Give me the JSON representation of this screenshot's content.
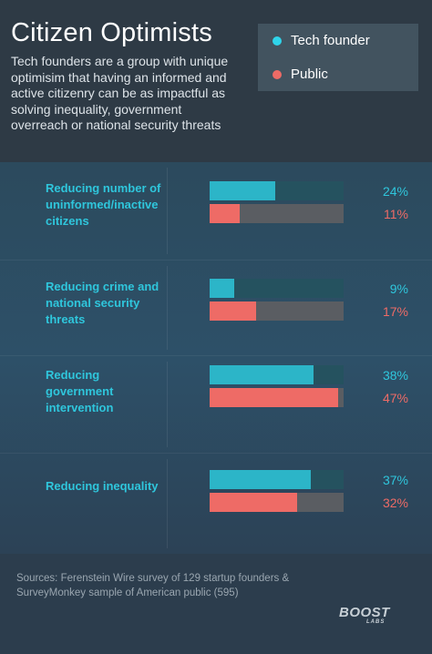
{
  "header": {
    "title": "Citizen Optimists",
    "subtitle": "Tech founders are a group with unique optimisim that having an informed and active citizenry can be as impactful as solving inequality, government overreach or national security threats"
  },
  "legend": {
    "items": [
      {
        "label": "Tech founder",
        "color": "#2fd4ea"
      },
      {
        "label": "Public",
        "color": "#ee6b66"
      }
    ]
  },
  "chart_data": {
    "type": "bar",
    "orientation": "horizontal",
    "categories": [
      "Reducing number of uninformed/inactive citizens",
      "Reducing crime and national security threats",
      "Reducing government intervention",
      "Reducing inequality"
    ],
    "series": [
      {
        "name": "Tech founder",
        "values": [
          24,
          9,
          38,
          37
        ],
        "labels": [
          "24%",
          "9%",
          "38%",
          "37%"
        ],
        "color": "#2cb5c8"
      },
      {
        "name": "Public",
        "values": [
          11,
          17,
          47,
          32
        ],
        "labels": [
          "11%",
          "17%",
          "47%",
          "32%"
        ],
        "color": "#ee6b66"
      }
    ],
    "xlim": [
      0,
      49
    ],
    "grid": false,
    "legend": "top-right"
  },
  "footer": {
    "sources": "Sources:  Ferenstein Wire survey of 129 startup founders & SurveyMonkey sample of American public (595)",
    "logo_main": "BOOST",
    "logo_sub": "LABS"
  }
}
